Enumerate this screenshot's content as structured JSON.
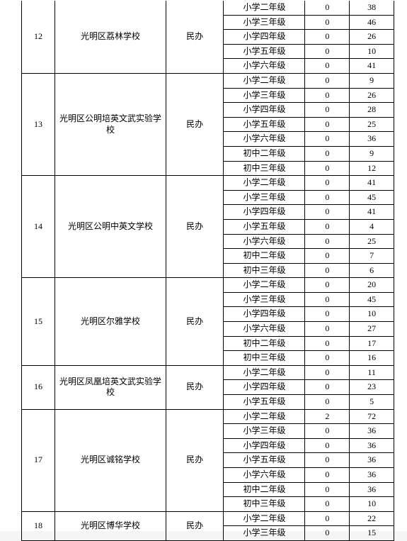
{
  "table": {
    "border_color": "#000000",
    "background_color": "#ffffff",
    "font_size": 12,
    "groups": [
      {
        "idx": "12",
        "school": "光明区荔林学校",
        "type": "民办",
        "partial_top": true,
        "rows": [
          {
            "grade": "小学二年级",
            "v1": "0",
            "v2": "38"
          },
          {
            "grade": "小学三年级",
            "v1": "0",
            "v2": "46"
          },
          {
            "grade": "小学四年级",
            "v1": "0",
            "v2": "26"
          },
          {
            "grade": "小学五年级",
            "v1": "0",
            "v2": "10"
          },
          {
            "grade": "小学六年级",
            "v1": "0",
            "v2": "41"
          }
        ]
      },
      {
        "idx": "13",
        "school": "光明区公明培英文武实验学校",
        "type": "民办",
        "rows": [
          {
            "grade": "小学二年级",
            "v1": "0",
            "v2": "9"
          },
          {
            "grade": "小学三年级",
            "v1": "0",
            "v2": "26"
          },
          {
            "grade": "小学四年级",
            "v1": "0",
            "v2": "28"
          },
          {
            "grade": "小学五年级",
            "v1": "0",
            "v2": "25"
          },
          {
            "grade": "小学六年级",
            "v1": "0",
            "v2": "36"
          },
          {
            "grade": "初中二年级",
            "v1": "0",
            "v2": "9"
          },
          {
            "grade": "初中三年级",
            "v1": "0",
            "v2": "12"
          }
        ]
      },
      {
        "idx": "14",
        "school": "光明区公明中英文学校",
        "type": "民办",
        "rows": [
          {
            "grade": "小学二年级",
            "v1": "0",
            "v2": "41"
          },
          {
            "grade": "小学三年级",
            "v1": "0",
            "v2": "45"
          },
          {
            "grade": "小学四年级",
            "v1": "0",
            "v2": "41"
          },
          {
            "grade": "小学五年级",
            "v1": "0",
            "v2": "4"
          },
          {
            "grade": "小学六年级",
            "v1": "0",
            "v2": "25"
          },
          {
            "grade": "初中二年级",
            "v1": "0",
            "v2": "7"
          },
          {
            "grade": "初中三年级",
            "v1": "0",
            "v2": "6"
          }
        ]
      },
      {
        "idx": "15",
        "school": "光明区尔雅学校",
        "type": "民办",
        "rows": [
          {
            "grade": "小学二年级",
            "v1": "0",
            "v2": "20"
          },
          {
            "grade": "小学三年级",
            "v1": "0",
            "v2": "45"
          },
          {
            "grade": "小学四年级",
            "v1": "0",
            "v2": "10"
          },
          {
            "grade": "小学六年级",
            "v1": "0",
            "v2": "27"
          },
          {
            "grade": "初中二年级",
            "v1": "0",
            "v2": "17"
          },
          {
            "grade": "初中三年级",
            "v1": "0",
            "v2": "16"
          }
        ]
      },
      {
        "idx": "16",
        "school": "光明区凤凰培英文武实验学校",
        "type": "民办",
        "rows": [
          {
            "grade": "小学二年级",
            "v1": "0",
            "v2": "11"
          },
          {
            "grade": "小学四年级",
            "v1": "0",
            "v2": "23"
          },
          {
            "grade": "小学五年级",
            "v1": "0",
            "v2": "5"
          }
        ]
      },
      {
        "idx": "17",
        "school": "光明区诚铭学校",
        "type": "民办",
        "rows": [
          {
            "grade": "小学二年级",
            "v1": "2",
            "v2": "72"
          },
          {
            "grade": "小学三年级",
            "v1": "0",
            "v2": "36"
          },
          {
            "grade": "小学四年级",
            "v1": "0",
            "v2": "36"
          },
          {
            "grade": "小学五年级",
            "v1": "0",
            "v2": "36"
          },
          {
            "grade": "小学六年级",
            "v1": "0",
            "v2": "36"
          },
          {
            "grade": "初中二年级",
            "v1": "0",
            "v2": "36"
          },
          {
            "grade": "初中三年级",
            "v1": "0",
            "v2": "10"
          }
        ]
      },
      {
        "idx": "18",
        "school": "光明区博华学校",
        "type": "民办",
        "rows": [
          {
            "grade": "小学二年级",
            "v1": "0",
            "v2": "22"
          },
          {
            "grade": "小学三年级",
            "v1": "0",
            "v2": "15"
          }
        ]
      }
    ]
  }
}
